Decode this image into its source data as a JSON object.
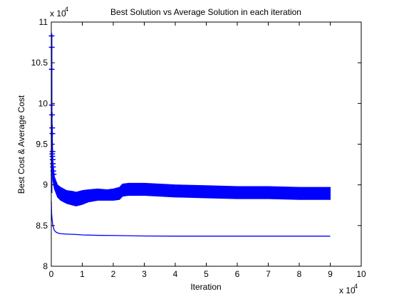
{
  "figure": {
    "background": "#ffffff",
    "line_color": "#0000ff"
  },
  "chart_data": {
    "type": "line",
    "title": "Best Solution vs Average Solution in each iteration",
    "xlabel": "Iteration",
    "ylabel": "Best Cost & Average Cost",
    "x_exponent_label": "x 10",
    "x_exponent_power": "4",
    "y_exponent_label": "x 10",
    "y_exponent_power": "4",
    "x_scale_note": "tick values multiplied by 10^4",
    "y_scale_note": "tick values multiplied by 10^4",
    "xlim": [
      0,
      100000
    ],
    "ylim": [
      80000,
      110000
    ],
    "x_ticks": [
      0,
      10000,
      20000,
      30000,
      40000,
      50000,
      60000,
      70000,
      80000,
      90000,
      100000
    ],
    "x_tick_labels": [
      "0",
      "1",
      "2",
      "3",
      "4",
      "5",
      "6",
      "7",
      "8",
      "9",
      "10"
    ],
    "y_ticks": [
      80000,
      85000,
      90000,
      95000,
      100000,
      105000,
      110000
    ],
    "y_tick_labels": [
      "8",
      "8.5",
      "9",
      "9.5",
      "10",
      "10.5",
      "11"
    ],
    "grid": false,
    "legend": "none",
    "series": [
      {
        "role": "average cost (oscillating band with '+' markers near start)",
        "x": [
          0,
          200,
          500,
          1000,
          2000,
          3000,
          5000,
          7000,
          8000,
          10000,
          12000,
          15000,
          18000,
          20000,
          22000,
          23000,
          25000,
          30000,
          35000,
          40000,
          50000,
          60000,
          70000,
          80000,
          90000
        ],
        "upper": [
          108500,
          99500,
          93000,
          91000,
          90000,
          89700,
          89300,
          89200,
          89100,
          89300,
          89400,
          89500,
          89400,
          89500,
          89700,
          90100,
          90200,
          90200,
          90100,
          90000,
          89900,
          89800,
          89800,
          89700,
          89700
        ],
        "lower": [
          108500,
          95000,
          90500,
          89500,
          88500,
          88100,
          87700,
          87500,
          87400,
          87600,
          87900,
          88100,
          88100,
          88100,
          88200,
          88600,
          88700,
          88700,
          88600,
          88500,
          88400,
          88300,
          88300,
          88200,
          88200
        ],
        "marker_points": [
          [
            100,
            108300
          ],
          [
            150,
            106900
          ],
          [
            120,
            104200
          ],
          [
            180,
            99800
          ],
          [
            250,
            98600
          ],
          [
            300,
            97000
          ],
          [
            350,
            96300
          ],
          [
            400,
            94100
          ],
          [
            300,
            93800
          ],
          [
            350,
            93500
          ],
          [
            450,
            93100
          ],
          [
            500,
            92600
          ],
          [
            550,
            92200
          ],
          [
            650,
            91700
          ],
          [
            750,
            91300
          ]
        ]
      },
      {
        "role": "best cost",
        "x": [
          0,
          100,
          300,
          500,
          800,
          1000,
          1500,
          2000,
          3000,
          5000,
          8000,
          10000,
          15000,
          20000,
          25000,
          30000,
          40000,
          50000,
          60000,
          70000,
          80000,
          90000
        ],
        "y": [
          88000,
          86500,
          85600,
          85000,
          84600,
          84400,
          84200,
          84100,
          84000,
          83950,
          83900,
          83850,
          83800,
          83780,
          83750,
          83720,
          83700,
          83700,
          83700,
          83700,
          83700,
          83700
        ]
      }
    ]
  }
}
